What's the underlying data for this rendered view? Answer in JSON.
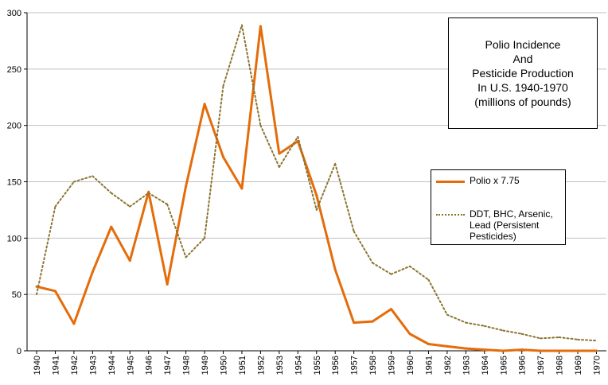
{
  "chart_data": {
    "type": "line",
    "title_lines": [
      "Polio Incidence",
      "And",
      "Pesticide Production",
      "In U.S. 1940-1970",
      "(millions of pounds)"
    ],
    "x": [
      1940,
      1941,
      1942,
      1943,
      1944,
      1945,
      1946,
      1947,
      1948,
      1949,
      1950,
      1951,
      1952,
      1953,
      1954,
      1955,
      1956,
      1957,
      1958,
      1959,
      1960,
      1961,
      1962,
      1963,
      1964,
      1965,
      1966,
      1967,
      1968,
      1969,
      1970
    ],
    "x_tick_labels": [
      "1940",
      "1941",
      "1942",
      "1943",
      "1944",
      "1945",
      "1946",
      "1947",
      "1948",
      "1949",
      "1950",
      "1951",
      "1952",
      "1953",
      "1954",
      "1955",
      "1956",
      "1957",
      "1958",
      "1959",
      "1960",
      "1961",
      "1962",
      "1963",
      "1964",
      "1965",
      "1966",
      "1967",
      "1968",
      "1969",
      "1970"
    ],
    "y_ticks": [
      0,
      50,
      100,
      150,
      200,
      250,
      300
    ],
    "y_tick_labels": [
      "0",
      "50",
      "100",
      "150",
      "200",
      "250",
      "300"
    ],
    "ylim": [
      0,
      300
    ],
    "grid": true,
    "xlabel": "",
    "ylabel": "",
    "series": [
      {
        "name": "Polio x 7.75",
        "color": "#E46C0A",
        "style": "solid",
        "values": [
          57,
          53,
          24,
          70,
          110,
          80,
          141,
          59,
          146,
          219,
          172,
          144,
          288,
          175,
          186,
          138,
          72,
          25,
          26,
          37,
          15,
          6,
          4,
          2,
          1,
          0,
          1,
          0,
          0,
          0,
          0
        ]
      },
      {
        "name": "DDT, BHC, Arsenic, Lead (Persistent Pesticides)",
        "legend_lines": [
          "DDT, BHC, Arsenic,",
          "Lead (Persistent",
          "Pesticides)"
        ],
        "color": "#8B7430",
        "style": "dotted",
        "values": [
          50,
          128,
          150,
          155,
          140,
          128,
          140,
          130,
          83,
          100,
          235,
          289,
          200,
          163,
          190,
          125,
          166,
          106,
          78,
          68,
          75,
          63,
          32,
          25,
          22,
          18,
          15,
          11,
          12,
          10,
          9
        ]
      }
    ]
  }
}
